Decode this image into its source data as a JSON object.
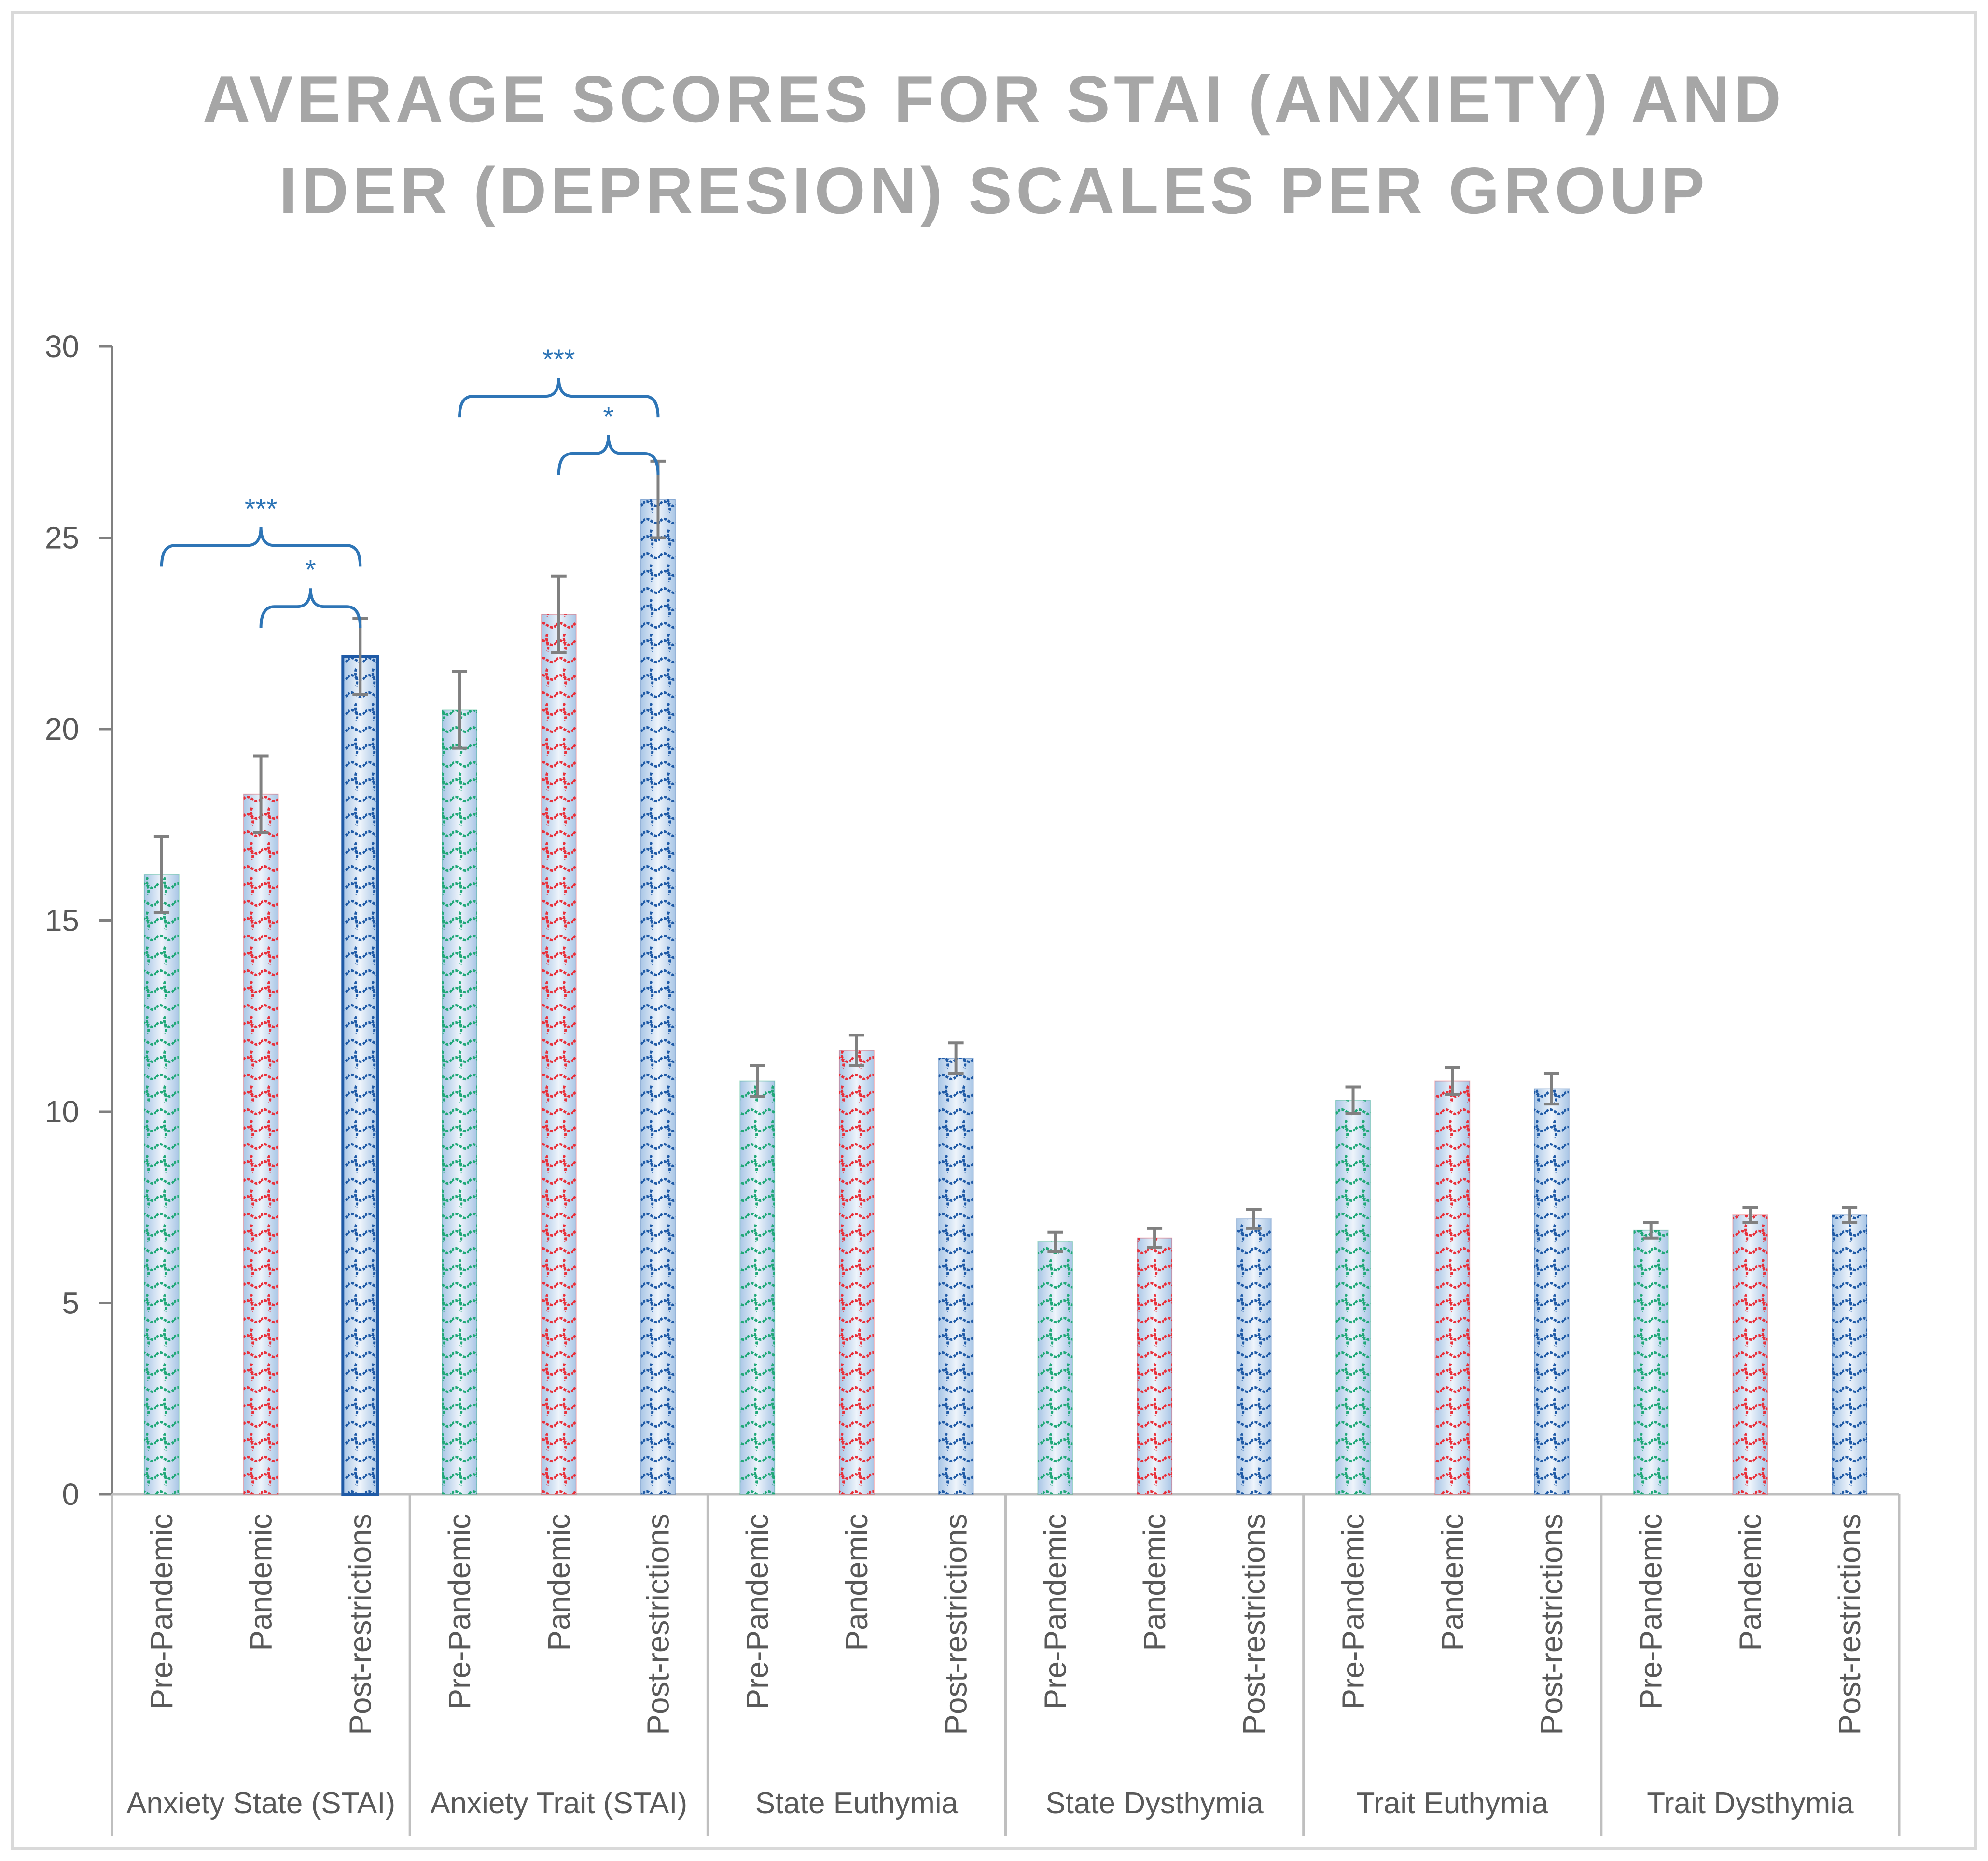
{
  "chart_data": {
    "type": "bar",
    "title": "AVERAGE SCORES FOR STAI (ANXIETY) AND IDER (DEPRESION) SCALES PER GROUP",
    "title_lines": [
      "AVERAGE SCORES FOR STAI (ANXIETY) AND",
      "IDER (DEPRESION) SCALES PER GROUP"
    ],
    "ylim": [
      0,
      30
    ],
    "yticks": [
      0,
      5,
      10,
      15,
      20,
      25,
      30
    ],
    "series_colors": {
      "Pre-Pandemic": "#20a878",
      "Pandemic": "#e8303a",
      "Post-restrictions": "#1f5aa6"
    },
    "bar_fill": "#c9dcf0",
    "errorbar_color": "#808080",
    "significance_color": "#2e75b6",
    "groups": [
      {
        "label": "Anxiety State (STAI)",
        "bars": [
          {
            "category": "Pre-Pandemic",
            "value": 16.2,
            "error": 1.0
          },
          {
            "category": "Pandemic",
            "value": 18.3,
            "error": 1.0
          },
          {
            "category": "Post-restrictions",
            "value": 21.9,
            "error": 1.0
          }
        ]
      },
      {
        "label": "Anxiety Trait (STAI)",
        "bars": [
          {
            "category": "Pre-Pandemic",
            "value": 20.5,
            "error": 1.0
          },
          {
            "category": "Pandemic",
            "value": 23.0,
            "error": 1.0
          },
          {
            "category": "Post-restrictions",
            "value": 26.0,
            "error": 1.0
          }
        ]
      },
      {
        "label": "State Euthymia",
        "bars": [
          {
            "category": "Pre-Pandemic",
            "value": 10.8,
            "error": 0.4
          },
          {
            "category": "Pandemic",
            "value": 11.6,
            "error": 0.4
          },
          {
            "category": "Post-restrictions",
            "value": 11.4,
            "error": 0.4
          }
        ]
      },
      {
        "label": "State Dysthymia",
        "bars": [
          {
            "category": "Pre-Pandemic",
            "value": 6.6,
            "error": 0.25
          },
          {
            "category": "Pandemic",
            "value": 6.7,
            "error": 0.25
          },
          {
            "category": "Post-restrictions",
            "value": 7.2,
            "error": 0.25
          }
        ]
      },
      {
        "label": "Trait Euthymia",
        "bars": [
          {
            "category": "Pre-Pandemic",
            "value": 10.3,
            "error": 0.35
          },
          {
            "category": "Pandemic",
            "value": 10.8,
            "error": 0.35
          },
          {
            "category": "Post-restrictions",
            "value": 10.6,
            "error": 0.4
          }
        ]
      },
      {
        "label": "Trait Dysthymia",
        "bars": [
          {
            "category": "Pre-Pandemic",
            "value": 6.9,
            "error": 0.2
          },
          {
            "category": "Pandemic",
            "value": 7.3,
            "error": 0.2
          },
          {
            "category": "Post-restrictions",
            "value": 7.3,
            "error": 0.2
          }
        ]
      }
    ],
    "significance": [
      {
        "group": 0,
        "from_bar": 0,
        "to_bar": 2,
        "level": 24.8,
        "label": "***"
      },
      {
        "group": 0,
        "from_bar": 1,
        "to_bar": 2,
        "level": 23.2,
        "label": "*"
      },
      {
        "group": 1,
        "from_bar": 0,
        "to_bar": 2,
        "level": 28.7,
        "label": "***"
      },
      {
        "group": 1,
        "from_bar": 1,
        "to_bar": 2,
        "level": 27.2,
        "label": "*"
      }
    ]
  }
}
